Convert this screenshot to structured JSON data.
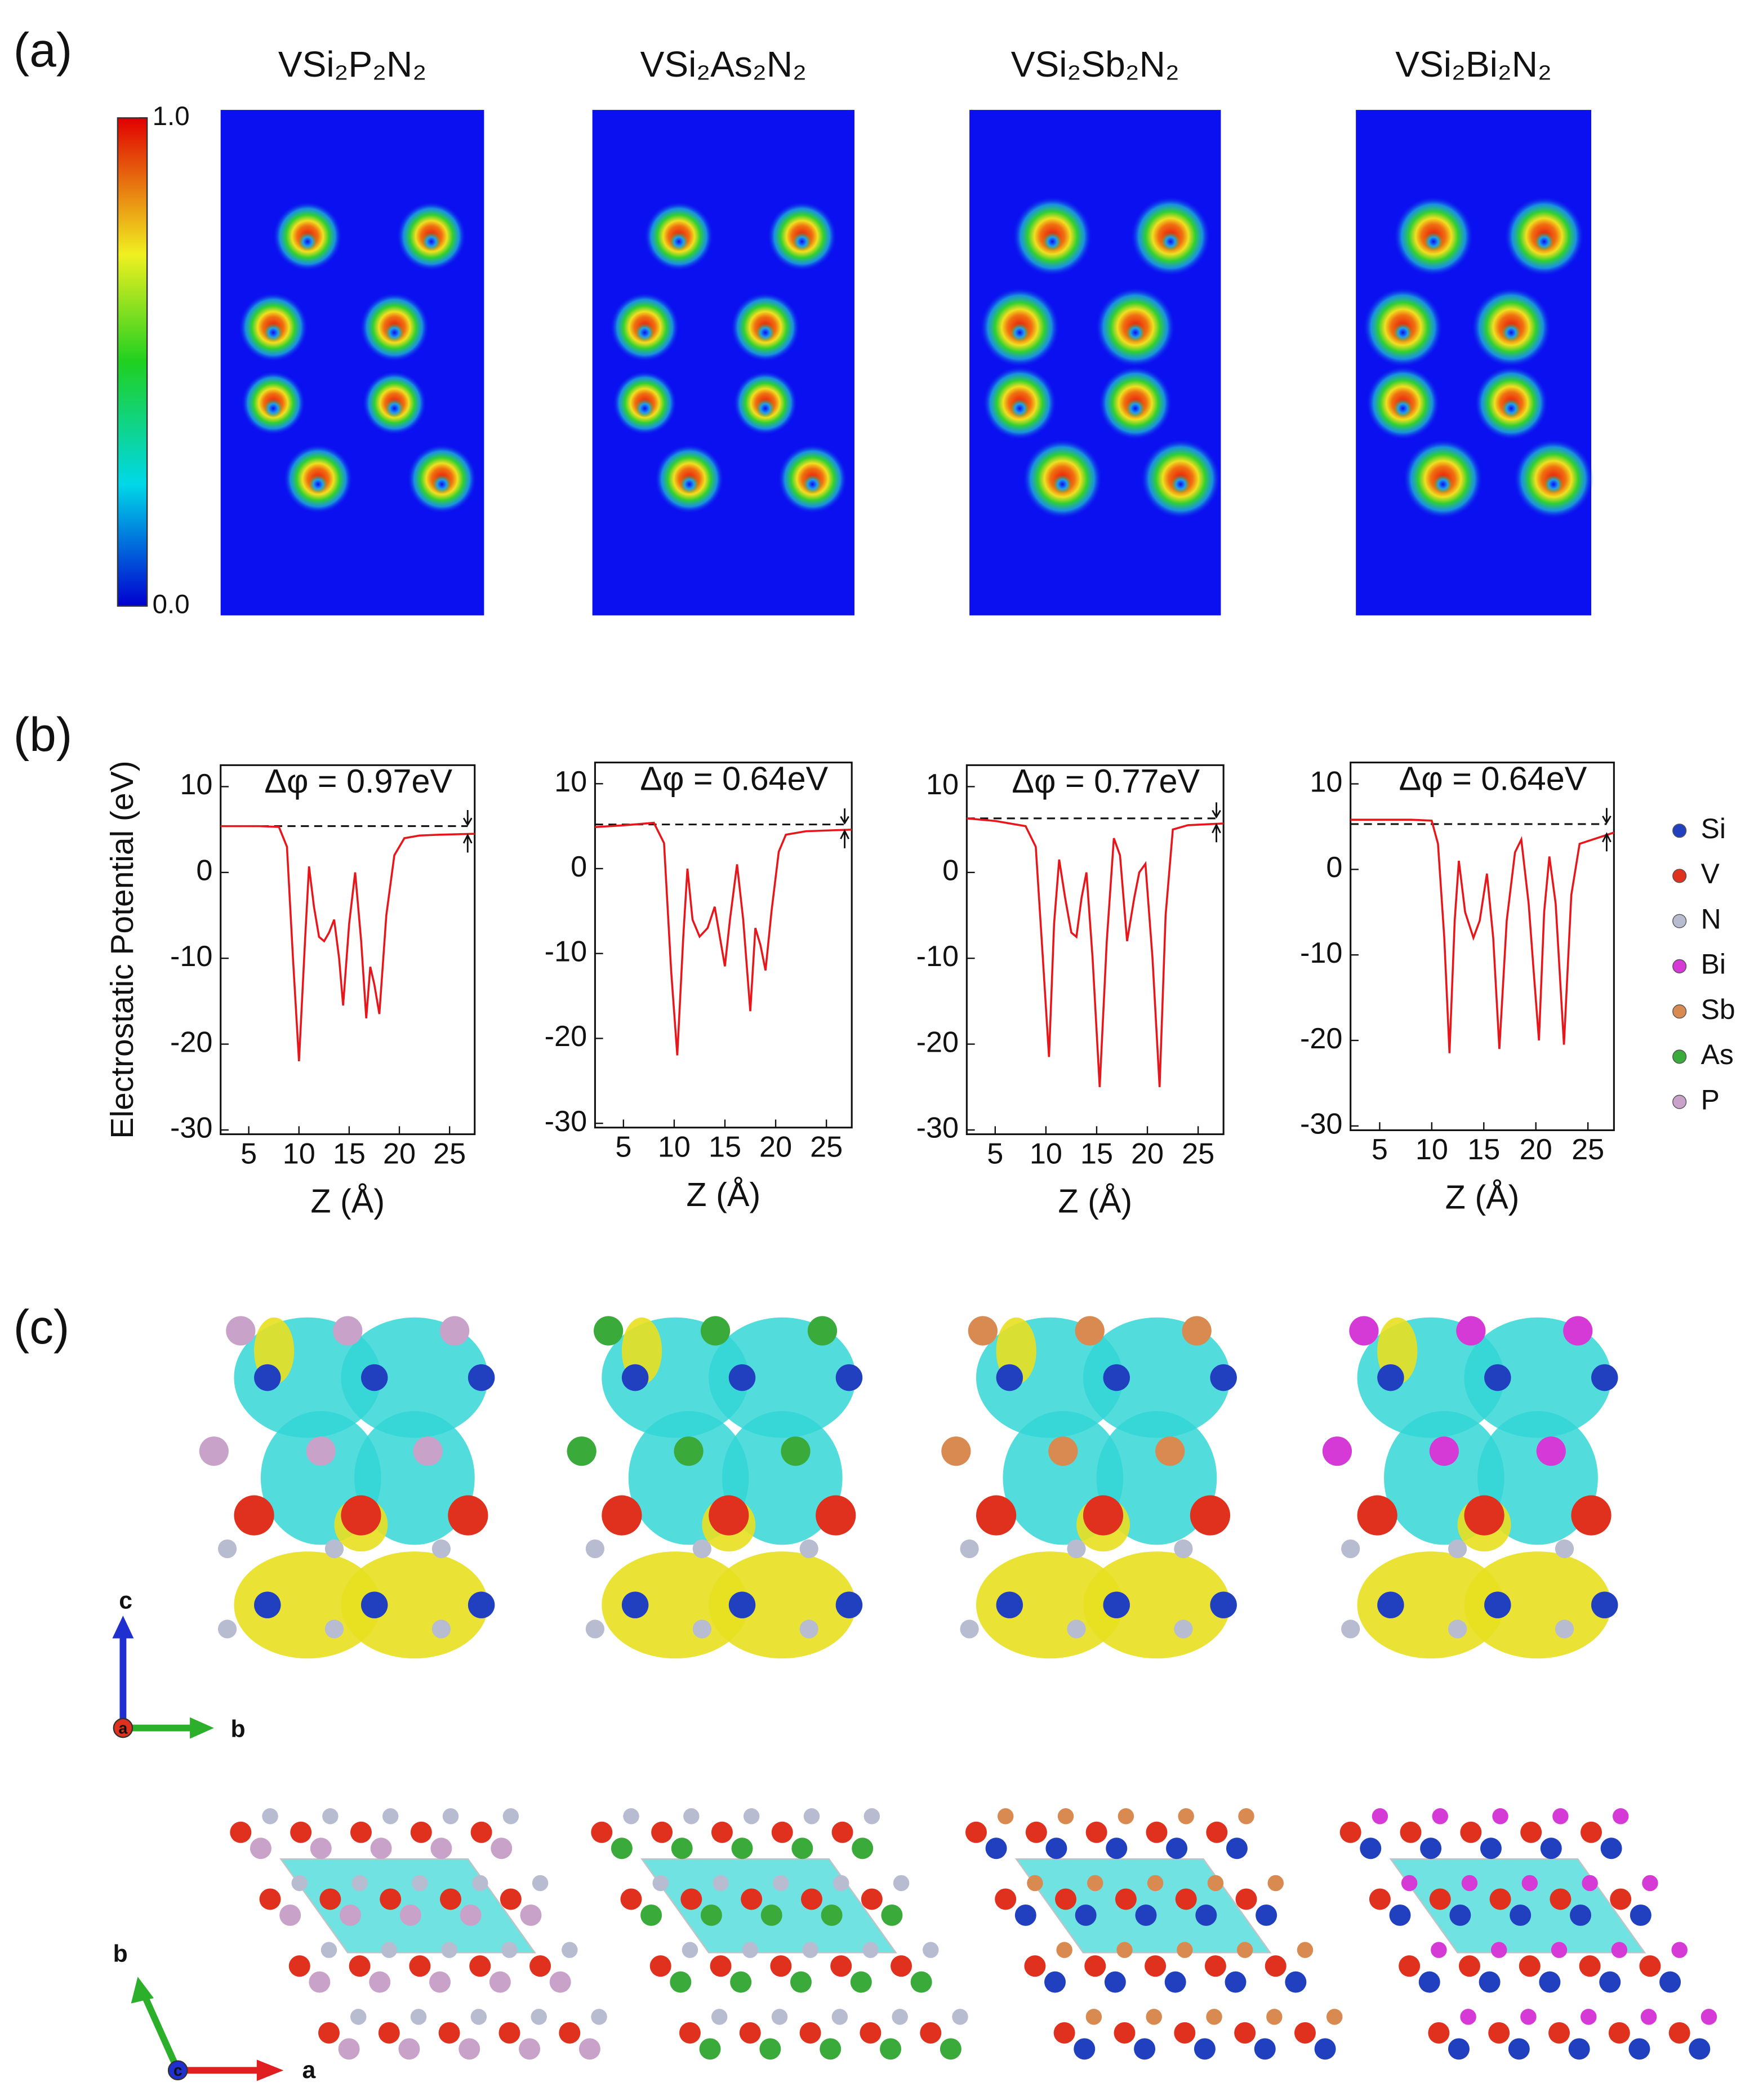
{
  "panel_labels": [
    "(a)",
    "(b)",
    "(c)"
  ],
  "elf_maps": {
    "titles": [
      "VSi₂P₂N₂",
      "VSi₂As₂N₂",
      "VSi₂Sb₂N₂",
      "VSi₂Bi₂N₂"
    ],
    "colorbar": {
      "lim": [
        0,
        1
      ],
      "ticks": [
        {
          "value": 1,
          "label": "1.0"
        },
        {
          "value": 0,
          "label": "0.0"
        }
      ]
    }
  },
  "chart_data": [
    {
      "type": "line",
      "ylabel": "Electrostatic Potential (eV)",
      "xlabel": "Z (Å)",
      "annotation": "Δφ = 0.97eV",
      "dashed_level": 5.4,
      "xlim": [
        2.2,
        27.5
      ],
      "ylim": [
        -30.5,
        12.5
      ],
      "xticks": [
        5,
        10,
        15,
        20,
        25
      ],
      "yticks": [
        -30,
        -20,
        -10,
        0,
        10
      ],
      "x": [
        2.2,
        6,
        8,
        8.8,
        9.4,
        10,
        10.6,
        11,
        11.5,
        12,
        12.5,
        13,
        13.5,
        14,
        14.4,
        15,
        15.6,
        16.2,
        16.7,
        17.1,
        17.5,
        18,
        18.7,
        19.5,
        20.5,
        22,
        24,
        27.5
      ],
      "series": [
        {
          "color": "#e8161b",
          "values": [
            5.4,
            5.4,
            5.3,
            3,
            -10,
            -22,
            -8,
            0.7,
            -4,
            -7.5,
            -8,
            -7,
            -5.5,
            -10,
            -15.5,
            -6,
            0,
            -8,
            -17,
            -11,
            -13,
            -16.5,
            -5,
            2,
            4,
            4.3,
            4.4,
            4.5
          ]
        }
      ]
    },
    {
      "type": "line",
      "xlabel": "Z (Å)",
      "annotation": "Δφ = 0.64eV",
      "dashed_level": 5.2,
      "xlim": [
        2.2,
        27.5
      ],
      "ylim": [
        -30.5,
        12.5
      ],
      "xticks": [
        5,
        10,
        15,
        20,
        25
      ],
      "yticks": [
        -30,
        -20,
        -10,
        0,
        10
      ],
      "x": [
        2.2,
        5,
        8,
        9,
        9.7,
        10.3,
        10.9,
        11.3,
        11.8,
        12.5,
        13.3,
        14,
        14.5,
        15,
        15.5,
        16.2,
        16.8,
        17.5,
        18,
        18.5,
        19,
        19.6,
        20.3,
        21,
        23,
        27.5
      ],
      "series": [
        {
          "color": "#e8161b",
          "values": [
            4.9,
            5.1,
            5.4,
            3,
            -12,
            -22,
            -8,
            0,
            -6,
            -8,
            -7,
            -4.5,
            -8,
            -11.5,
            -6,
            0.5,
            -6,
            -16.8,
            -7,
            -9,
            -12,
            -5,
            2,
            4,
            4.4,
            4.6
          ]
        }
      ]
    },
    {
      "type": "line",
      "xlabel": "Z (Å)",
      "annotation": "Δφ = 0.77eV",
      "dashed_level": 6.3,
      "xlim": [
        2.2,
        27.5
      ],
      "ylim": [
        -30.5,
        12.5
      ],
      "xticks": [
        5,
        10,
        15,
        20,
        25
      ],
      "yticks": [
        -30,
        -20,
        -10,
        0,
        10
      ],
      "x": [
        2.2,
        5,
        8,
        9,
        9.7,
        10.3,
        10.8,
        11.3,
        11.9,
        12.5,
        13,
        13.5,
        14,
        14.6,
        15.3,
        16,
        16.7,
        17.3,
        18,
        18.7,
        19.2,
        19.8,
        20.5,
        21.2,
        21.8,
        22.5,
        24,
        27.5
      ],
      "series": [
        {
          "color": "#e8161b",
          "values": [
            6.3,
            6,
            5.4,
            3,
            -10,
            -21.5,
            -6,
            1.5,
            -3,
            -7,
            -7.5,
            -3,
            0,
            -10,
            -25,
            -8,
            4,
            2,
            -8,
            -3,
            0,
            1,
            -10,
            -25,
            -5,
            5,
            5.5,
            5.7
          ]
        }
      ]
    },
    {
      "type": "line",
      "xlabel": "Z (Å)",
      "annotation": "Δφ = 0.64eV",
      "dashed_level": 5.3,
      "xlim": [
        2.2,
        27.5
      ],
      "ylim": [
        -30.5,
        12.5
      ],
      "xticks": [
        5,
        10,
        15,
        20,
        25
      ],
      "yticks": [
        -30,
        -20,
        -10,
        0,
        10
      ],
      "x": [
        2.2,
        8,
        10,
        10.6,
        11.2,
        11.7,
        12.2,
        12.6,
        13.2,
        14,
        14.6,
        15.3,
        15.9,
        16.5,
        17.2,
        18,
        18.6,
        19.3,
        19.8,
        20.3,
        20.8,
        21.3,
        21.9,
        22.7,
        23.4,
        24.2,
        27.5
      ],
      "series": [
        {
          "color": "#e8161b",
          "values": [
            5.8,
            5.8,
            5.7,
            3,
            -8,
            -21.5,
            -6,
            1,
            -5,
            -8,
            -6,
            -0.5,
            -8,
            -21,
            -6,
            2,
            3.5,
            -4,
            -12,
            -20,
            -5,
            1.5,
            -4,
            -20.5,
            -3,
            3,
            4.3
          ]
        }
      ]
    }
  ],
  "legend": [
    {
      "name": "Si",
      "color": "#2040c0"
    },
    {
      "name": "V",
      "color": "#e0301e"
    },
    {
      "name": "N",
      "color": "#b8bcd0"
    },
    {
      "name": "Bi",
      "color": "#d63ad6"
    },
    {
      "name": "Sb",
      "color": "#d98a50"
    },
    {
      "name": "As",
      "color": "#3aaa3a"
    },
    {
      "name": "P",
      "color": "#c9a2c9"
    }
  ],
  "axis_labels": {
    "side": [
      "c",
      "a",
      "b"
    ],
    "top": [
      "b",
      "c",
      "a"
    ]
  }
}
